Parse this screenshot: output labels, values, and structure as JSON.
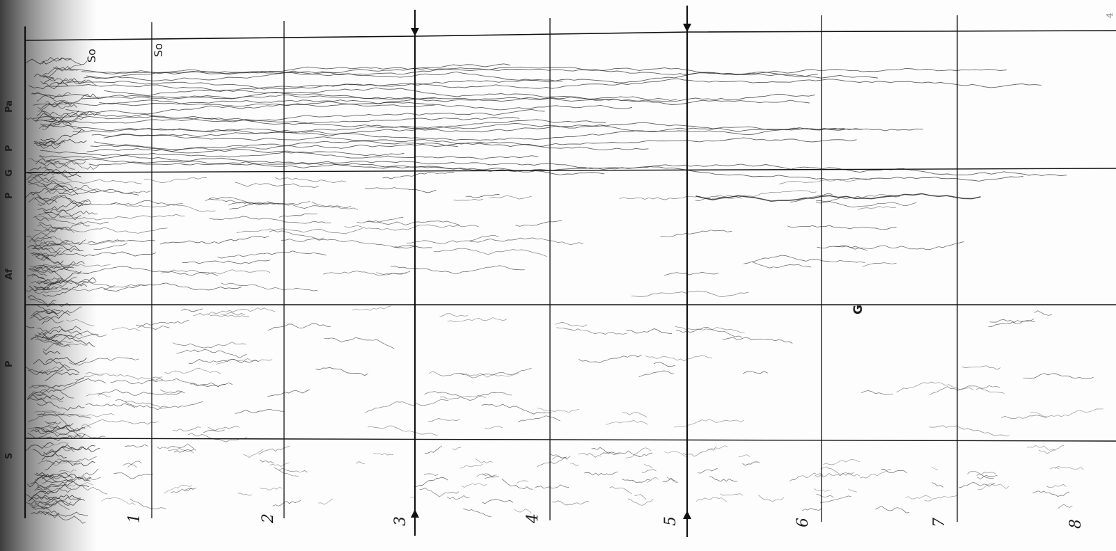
{
  "figure": {
    "column_labels": [
      "1",
      "2",
      "3",
      "4",
      "5",
      "6",
      "7",
      "8"
    ],
    "arrow_columns": [
      "3",
      "5"
    ],
    "top_labels": [
      "So",
      "So"
    ],
    "zone_labels": [
      "Pa",
      "P",
      "G",
      "P",
      "Af",
      "P",
      "S"
    ],
    "region_label": "G",
    "corner_mark": "4"
  }
}
